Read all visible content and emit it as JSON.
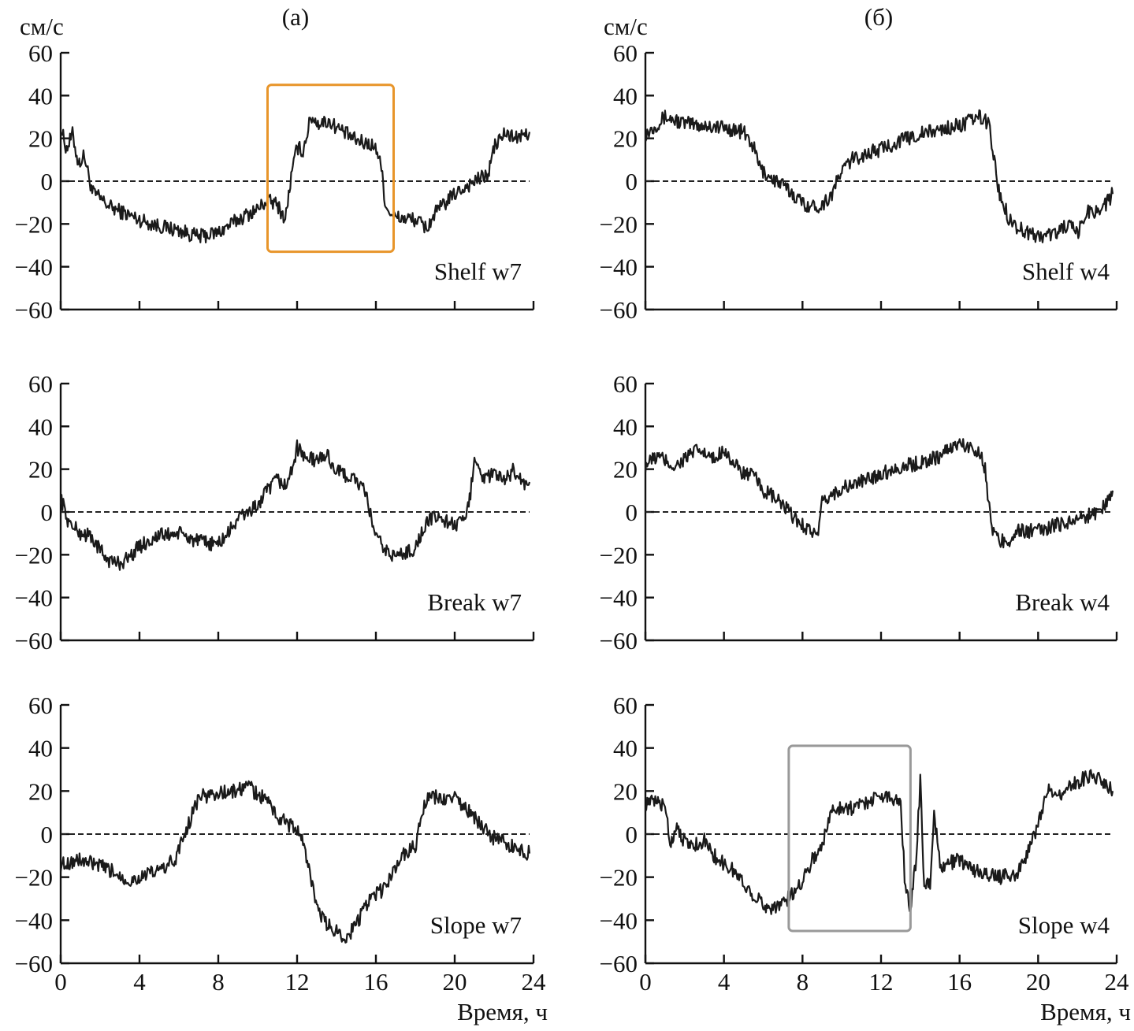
{
  "figure": {
    "columns": [
      {
        "tag": "(а)",
        "unit": "см/с"
      },
      {
        "tag": "(б)",
        "unit": "см/с"
      }
    ],
    "xlabel": "Время, ч",
    "x_ticks": [
      "0",
      "4",
      "8",
      "12",
      "16",
      "20",
      "24"
    ],
    "y_ticks": [
      "60",
      "40",
      "20",
      "0",
      "−20",
      "−40",
      "−60"
    ]
  },
  "chart_data": [
    {
      "type": "line",
      "title": "Shelf w7",
      "column": "(а)",
      "xlabel": "",
      "ylabel": "см/с",
      "xlim": [
        0,
        24
      ],
      "ylim": [
        -60,
        60
      ],
      "zero_line": "dashed",
      "series": [
        {
          "name": "Shelf w7",
          "points": [
            [
              0,
              25
            ],
            [
              0.3,
              15
            ],
            [
              0.6,
              22
            ],
            [
              0.9,
              8
            ],
            [
              1.2,
              12
            ],
            [
              1.6,
              -5
            ],
            [
              2.5,
              -12
            ],
            [
              4,
              -18
            ],
            [
              5,
              -21
            ],
            [
              6,
              -23
            ],
            [
              7,
              -26
            ],
            [
              8,
              -24
            ],
            [
              9,
              -18
            ],
            [
              10,
              -13
            ],
            [
              10.5,
              -9
            ],
            [
              11,
              -11
            ],
            [
              11.4,
              -18
            ],
            [
              11.7,
              2
            ],
            [
              12,
              16
            ],
            [
              12.3,
              14
            ],
            [
              12.7,
              30
            ],
            [
              13.1,
              27
            ],
            [
              13.6,
              28
            ],
            [
              14.2,
              24
            ],
            [
              15,
              19
            ],
            [
              15.8,
              17
            ],
            [
              16.2,
              12
            ],
            [
              16.5,
              -12
            ],
            [
              17,
              -17
            ],
            [
              18,
              -18
            ],
            [
              18.6,
              -22
            ],
            [
              19,
              -15
            ],
            [
              20,
              -6
            ],
            [
              21,
              0
            ],
            [
              21.7,
              3
            ],
            [
              22,
              16
            ],
            [
              22.5,
              22
            ],
            [
              23.3,
              20
            ],
            [
              23.8,
              23
            ]
          ]
        }
      ],
      "highlight": {
        "x_range": [
          10.5,
          16.9
        ],
        "y_range": [
          -33,
          45
        ],
        "color": "#e8952a"
      }
    },
    {
      "type": "line",
      "title": "Shelf w4",
      "column": "(б)",
      "xlabel": "",
      "ylabel": "см/с",
      "xlim": [
        0,
        24
      ],
      "ylim": [
        -60,
        60
      ],
      "zero_line": "dashed",
      "series": [
        {
          "name": "Shelf w4",
          "points": [
            [
              0,
              22
            ],
            [
              0.5,
              26
            ],
            [
              1,
              30
            ],
            [
              2,
              27
            ],
            [
              3,
              26
            ],
            [
              4,
              25
            ],
            [
              5,
              23
            ],
            [
              5.5,
              16
            ],
            [
              5.9,
              5
            ],
            [
              6.5,
              1
            ],
            [
              7,
              -2
            ],
            [
              7.5,
              -6
            ],
            [
              8,
              -10
            ],
            [
              8.5,
              -12
            ],
            [
              9,
              -11
            ],
            [
              9.5,
              -6
            ],
            [
              10,
              5
            ],
            [
              10.5,
              10
            ],
            [
              11,
              12
            ],
            [
              12,
              15
            ],
            [
              13,
              19
            ],
            [
              14,
              22
            ],
            [
              15,
              24
            ],
            [
              16,
              26
            ],
            [
              17,
              30
            ],
            [
              17.5,
              27
            ],
            [
              18,
              -5
            ],
            [
              18.5,
              -17
            ],
            [
              19,
              -22
            ],
            [
              20,
              -26
            ],
            [
              21,
              -24
            ],
            [
              21.5,
              -20
            ],
            [
              22,
              -25
            ],
            [
              22.5,
              -14
            ],
            [
              23,
              -14
            ],
            [
              23.5,
              -10
            ],
            [
              23.8,
              -6
            ]
          ]
        }
      ]
    },
    {
      "type": "line",
      "title": "Break w7",
      "column": "(а)",
      "xlabel": "",
      "ylabel": "см/с",
      "xlim": [
        0,
        24
      ],
      "ylim": [
        -60,
        60
      ],
      "zero_line": "dashed",
      "series": [
        {
          "name": "Break w7",
          "points": [
            [
              0,
              7
            ],
            [
              0.4,
              -5
            ],
            [
              1,
              -10
            ],
            [
              1.5,
              -11
            ],
            [
              2,
              -18
            ],
            [
              2.5,
              -23
            ],
            [
              3,
              -24
            ],
            [
              3.5,
              -21
            ],
            [
              4,
              -16
            ],
            [
              5,
              -11
            ],
            [
              6,
              -10
            ],
            [
              7,
              -14
            ],
            [
              8,
              -15
            ],
            [
              8.5,
              -10
            ],
            [
              9,
              -3
            ],
            [
              10,
              3
            ],
            [
              10.5,
              10
            ],
            [
              11,
              15
            ],
            [
              11.5,
              12
            ],
            [
              12,
              30
            ],
            [
              12.5,
              25
            ],
            [
              13,
              24
            ],
            [
              13.5,
              27
            ],
            [
              14,
              19
            ],
            [
              15,
              15
            ],
            [
              15.5,
              8
            ],
            [
              16,
              -12
            ],
            [
              16.5,
              -18
            ],
            [
              17,
              -21
            ],
            [
              18,
              -17
            ],
            [
              18.5,
              -6
            ],
            [
              19,
              -2
            ],
            [
              20,
              -6
            ],
            [
              20.5,
              -5
            ],
            [
              20.8,
              8
            ],
            [
              21,
              27
            ],
            [
              21.5,
              15
            ],
            [
              22,
              18
            ],
            [
              22.5,
              14
            ],
            [
              23,
              20
            ],
            [
              23.5,
              13
            ],
            [
              23.8,
              14
            ]
          ]
        }
      ]
    },
    {
      "type": "line",
      "title": "Break w4",
      "column": "(б)",
      "xlabel": "",
      "ylabel": "см/с",
      "xlim": [
        0,
        24
      ],
      "ylim": [
        -60,
        60
      ],
      "zero_line": "dashed",
      "series": [
        {
          "name": "Break w4",
          "points": [
            [
              0,
              22
            ],
            [
              0.6,
              26
            ],
            [
              1,
              24
            ],
            [
              1.5,
              21
            ],
            [
              2,
              25
            ],
            [
              2.7,
              29
            ],
            [
              3.5,
              24
            ],
            [
              4,
              30
            ],
            [
              4.5,
              22
            ],
            [
              5,
              18
            ],
            [
              5.5,
              17
            ],
            [
              6,
              10
            ],
            [
              6.5,
              7
            ],
            [
              7,
              3
            ],
            [
              7.5,
              -2
            ],
            [
              8,
              -6
            ],
            [
              8.5,
              -9
            ],
            [
              8.8,
              -12
            ],
            [
              9,
              4
            ],
            [
              9.5,
              8
            ],
            [
              10,
              11
            ],
            [
              11,
              14
            ],
            [
              12,
              18
            ],
            [
              13,
              21
            ],
            [
              14,
              23
            ],
            [
              15,
              26
            ],
            [
              15.5,
              30
            ],
            [
              16,
              32
            ],
            [
              16.5,
              30
            ],
            [
              17,
              29
            ],
            [
              17.3,
              20
            ],
            [
              17.6,
              -6
            ],
            [
              18,
              -14
            ],
            [
              18.5,
              -13
            ],
            [
              19,
              -9
            ],
            [
              20,
              -9
            ],
            [
              21,
              -6
            ],
            [
              22,
              -3
            ],
            [
              22.5,
              -2
            ],
            [
              23,
              0
            ],
            [
              23.5,
              4
            ],
            [
              23.8,
              10
            ]
          ]
        }
      ]
    },
    {
      "type": "line",
      "title": "Slope w7",
      "column": "(а)",
      "xlabel": "Время, ч",
      "ylabel": "см/с",
      "xlim": [
        0,
        24
      ],
      "ylim": [
        -60,
        60
      ],
      "zero_line": "dashed",
      "series": [
        {
          "name": "Slope w7",
          "points": [
            [
              0,
              -14
            ],
            [
              1,
              -12
            ],
            [
              2,
              -15
            ],
            [
              3,
              -19
            ],
            [
              3.5,
              -22
            ],
            [
              4,
              -20
            ],
            [
              5,
              -17
            ],
            [
              5.8,
              -12
            ],
            [
              6.2,
              -2
            ],
            [
              6.5,
              5
            ],
            [
              7,
              17
            ],
            [
              8,
              19
            ],
            [
              9,
              20
            ],
            [
              9.5,
              23
            ],
            [
              10,
              18
            ],
            [
              10.5,
              16
            ],
            [
              11,
              8
            ],
            [
              11.5,
              5
            ],
            [
              12,
              2
            ],
            [
              12.3,
              -4
            ],
            [
              12.6,
              -15
            ],
            [
              13,
              -35
            ],
            [
              13.5,
              -42
            ],
            [
              14,
              -45
            ],
            [
              14.5,
              -48
            ],
            [
              15,
              -42
            ],
            [
              15.5,
              -33
            ],
            [
              16,
              -28
            ],
            [
              16.5,
              -25
            ],
            [
              17,
              -15
            ],
            [
              17.5,
              -8
            ],
            [
              18,
              -6
            ],
            [
              18.5,
              15
            ],
            [
              19,
              17
            ],
            [
              19.5,
              16
            ],
            [
              20,
              17
            ],
            [
              20.5,
              12
            ],
            [
              21,
              8
            ],
            [
              21.5,
              2
            ],
            [
              22,
              -2
            ],
            [
              22.5,
              -4
            ],
            [
              23,
              -6
            ],
            [
              23.8,
              -9
            ]
          ]
        }
      ]
    },
    {
      "type": "line",
      "title": "Slope w4",
      "column": "(б)",
      "xlabel": "Время, ч",
      "ylabel": "см/с",
      "xlim": [
        0,
        24
      ],
      "ylim": [
        -60,
        60
      ],
      "zero_line": "dashed",
      "series": [
        {
          "name": "Slope w4",
          "points": [
            [
              0,
              14
            ],
            [
              0.5,
              15
            ],
            [
              1,
              13
            ],
            [
              1.3,
              -5
            ],
            [
              1.6,
              5
            ],
            [
              2,
              -4
            ],
            [
              2.5,
              -5
            ],
            [
              3,
              -3
            ],
            [
              3.5,
              -10
            ],
            [
              4,
              -14
            ],
            [
              4.5,
              -17
            ],
            [
              5,
              -23
            ],
            [
              5.5,
              -28
            ],
            [
              6,
              -33
            ],
            [
              6.5,
              -34
            ],
            [
              7,
              -32
            ],
            [
              7.5,
              -28
            ],
            [
              8,
              -21
            ],
            [
              8.5,
              -12
            ],
            [
              9,
              -5
            ],
            [
              9.5,
              11
            ],
            [
              10,
              13
            ],
            [
              10.5,
              12
            ],
            [
              11,
              14
            ],
            [
              12,
              18
            ],
            [
              13,
              16
            ],
            [
              13.2,
              -20
            ],
            [
              13.5,
              -35
            ],
            [
              13.8,
              -10
            ],
            [
              14,
              25
            ],
            [
              14.2,
              -26
            ],
            [
              14.5,
              -22
            ],
            [
              14.7,
              10
            ],
            [
              15,
              -15
            ],
            [
              16,
              -12
            ],
            [
              17,
              -18
            ],
            [
              18,
              -20
            ],
            [
              19,
              -18
            ],
            [
              19.5,
              -8
            ],
            [
              20,
              5
            ],
            [
              20.5,
              20
            ],
            [
              21,
              18
            ],
            [
              21.5,
              22
            ],
            [
              22,
              24
            ],
            [
              22.5,
              27
            ],
            [
              23,
              26
            ],
            [
              23.5,
              22
            ],
            [
              23.8,
              20
            ]
          ]
        }
      ],
      "highlight": {
        "x_range": [
          7.3,
          13.5
        ],
        "y_range": [
          -45,
          41
        ],
        "color": "#999999"
      }
    }
  ]
}
